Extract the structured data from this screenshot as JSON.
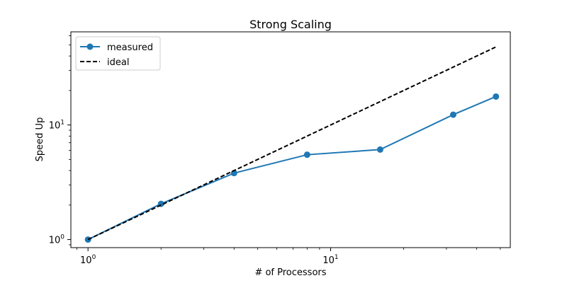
{
  "chart_data": {
    "type": "line",
    "title": "Strong Scaling",
    "xlabel": "# of Processors",
    "ylabel": "Speed Up",
    "xscale": "log",
    "yscale": "log",
    "xlim": [
      0.85,
      55
    ],
    "ylim": [
      0.85,
      65
    ],
    "grid": false,
    "legend_position": "top-left",
    "x_ticks": [
      {
        "value": 1,
        "base": "10",
        "exp": "0"
      },
      {
        "value": 10,
        "base": "10",
        "exp": "1"
      }
    ],
    "y_ticks": [
      {
        "value": 1,
        "base": "10",
        "exp": "0"
      },
      {
        "value": 10,
        "base": "10",
        "exp": "1"
      }
    ],
    "series": [
      {
        "name": "measured",
        "style": "solid-with-markers",
        "color": "#1f77b4",
        "x": [
          1,
          2,
          4,
          8,
          16,
          32,
          48
        ],
        "y": [
          1.0,
          2.05,
          3.8,
          5.5,
          6.1,
          12.3,
          17.7
        ]
      },
      {
        "name": "ideal",
        "style": "dashed",
        "color": "#000000",
        "x": [
          1,
          48
        ],
        "y": [
          1,
          48
        ]
      }
    ]
  }
}
